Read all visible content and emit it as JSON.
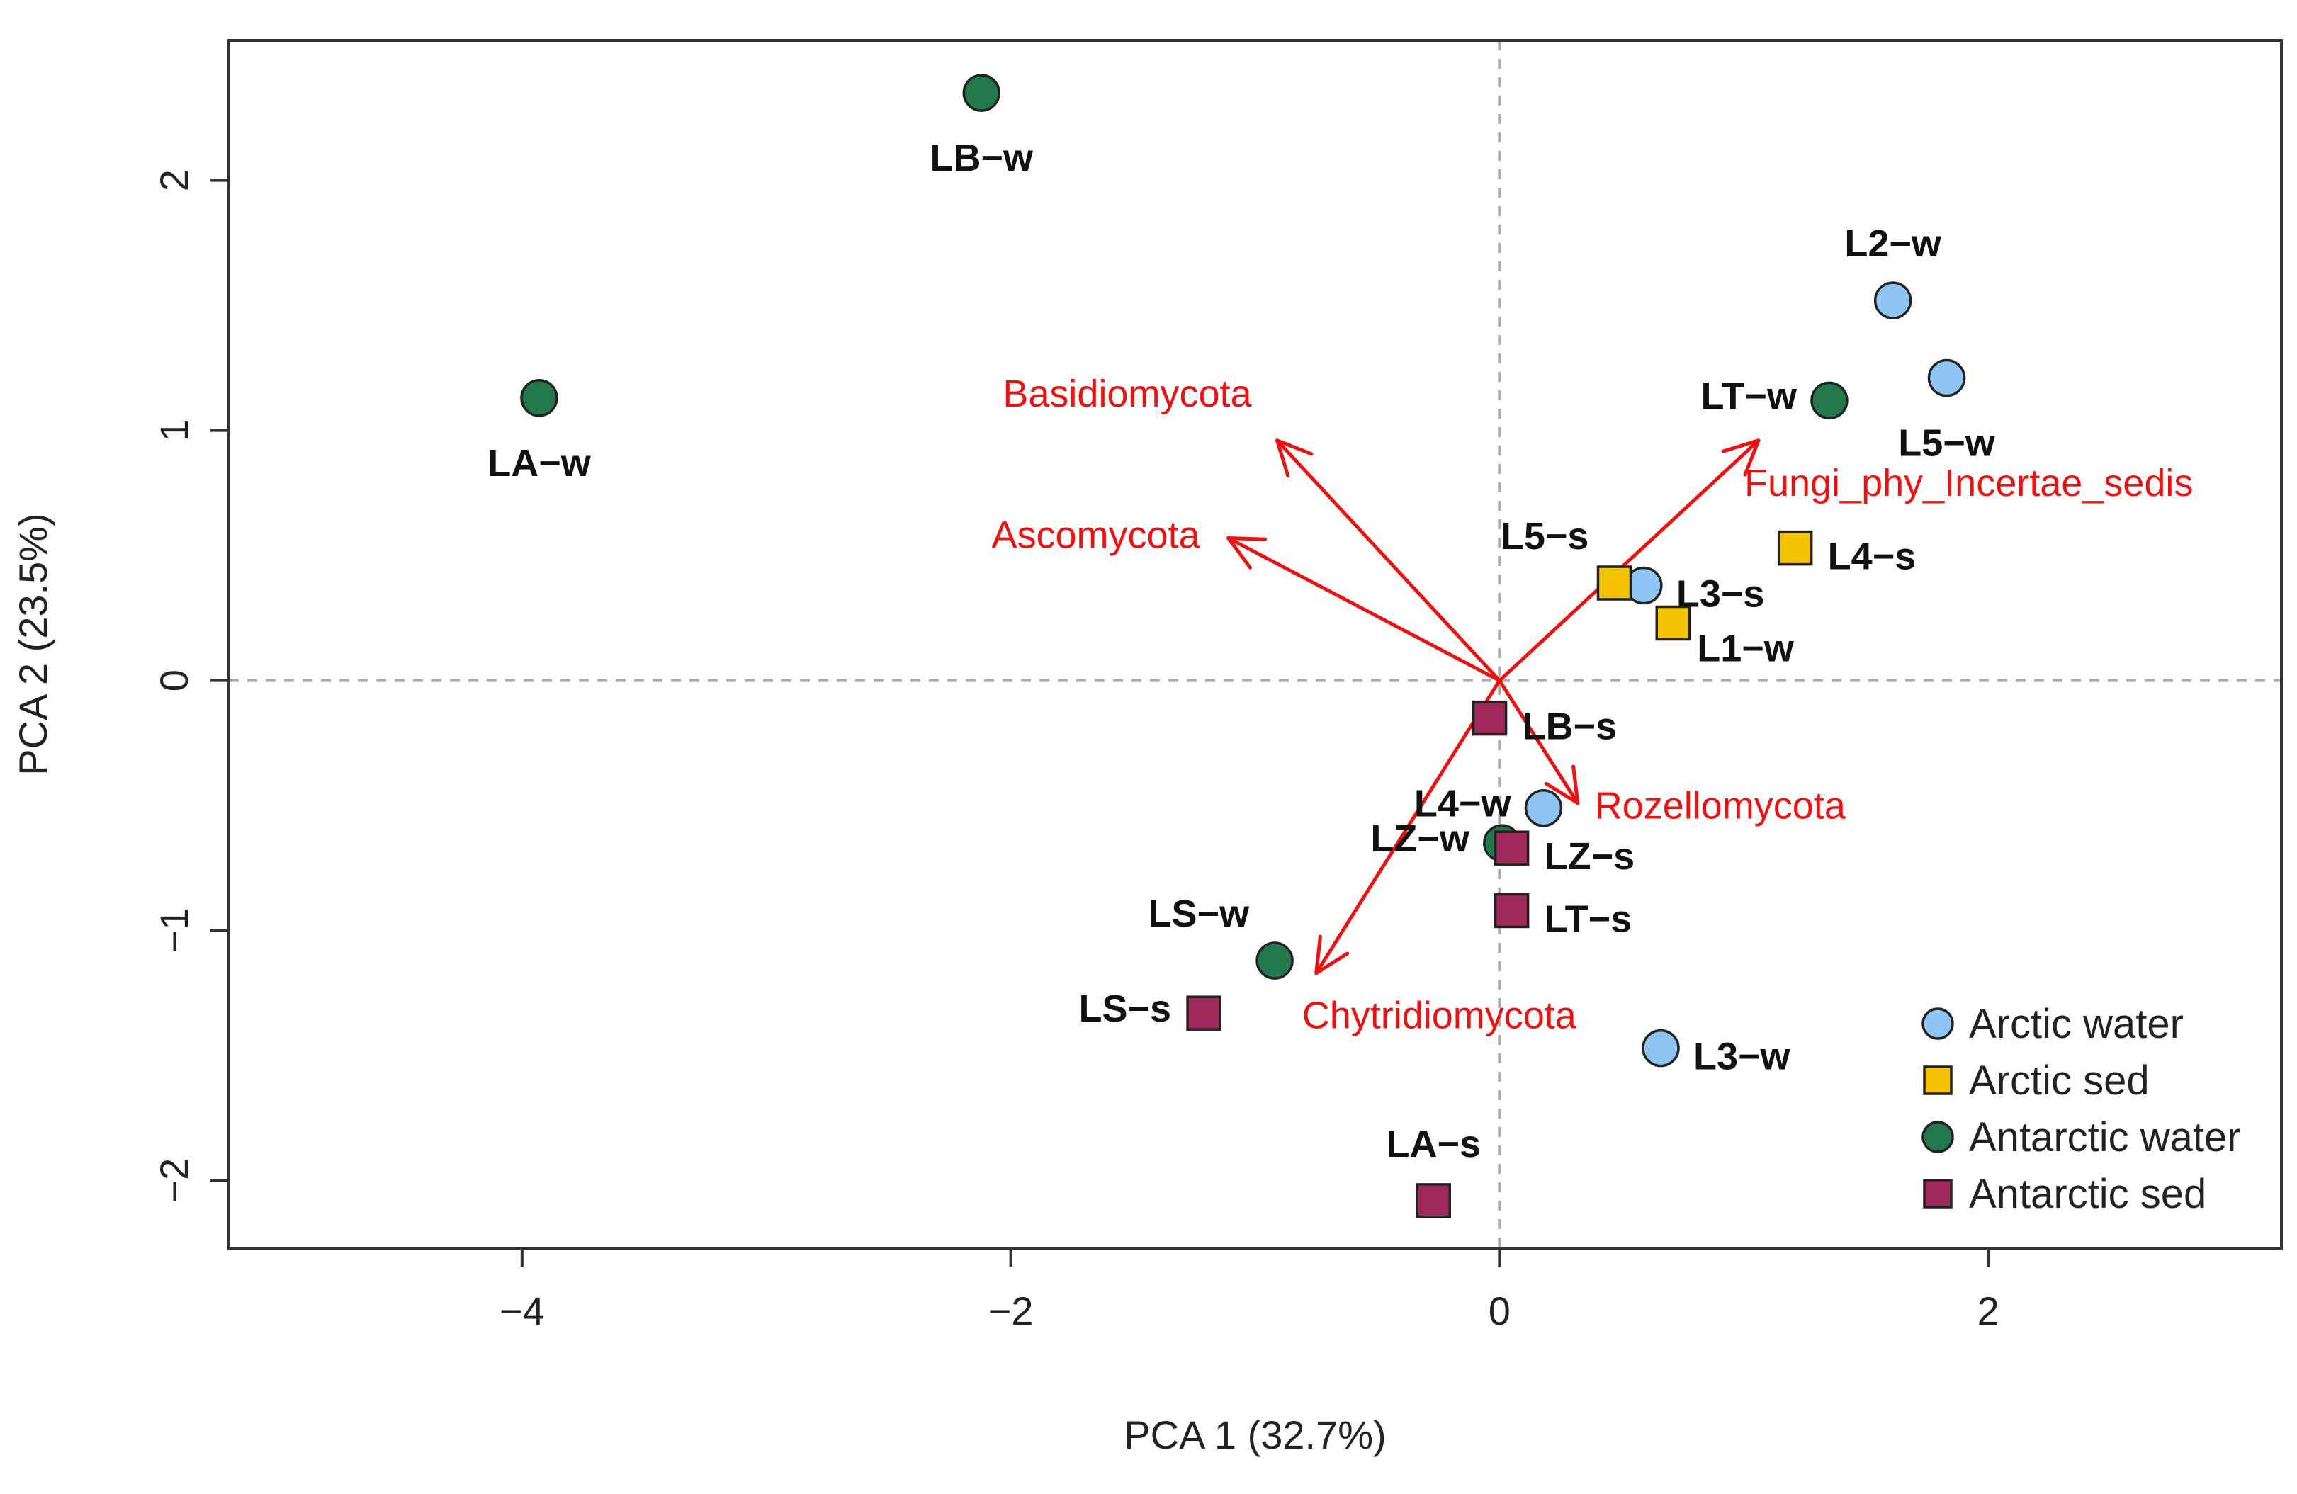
{
  "chart_data": {
    "type": "scatter",
    "subtype": "pca-biplot",
    "xlabel": "PCA 1 (32.7%)",
    "ylabel": "PCA 2 (23.5%)",
    "xlim": [
      -5.2,
      3.2
    ],
    "ylim": [
      -2.27,
      2.56
    ],
    "xticks": [
      -4,
      -2,
      0,
      2
    ],
    "xtick_labels": [
      "−4",
      "−2",
      "0",
      "2"
    ],
    "yticks": [
      -2,
      -1,
      0,
      1,
      2
    ],
    "ytick_labels": [
      "−2",
      "−1",
      "0",
      "1",
      "2"
    ],
    "reference_lines": {
      "x": 0,
      "y": 0,
      "style": "dashed"
    },
    "groups": [
      {
        "name": "Arctic water",
        "marker": "circle",
        "color": "#8EC5F2"
      },
      {
        "name": "Arctic sed",
        "marker": "square",
        "color": "#F5C400"
      },
      {
        "name": "Antarctic water",
        "marker": "circle",
        "color": "#22784A"
      },
      {
        "name": "Antarctic sed",
        "marker": "square",
        "color": "#A0285A"
      }
    ],
    "points": [
      {
        "label": "LB−w",
        "group": 2,
        "x": -2.12,
        "y": 2.35,
        "label_pos": "below"
      },
      {
        "label": "LA−w",
        "group": 2,
        "x": -3.93,
        "y": 1.13,
        "label_pos": "below"
      },
      {
        "label": "LT−w",
        "group": 2,
        "x": 1.35,
        "y": 1.12,
        "label_pos": "left"
      },
      {
        "label": "LS−w",
        "group": 2,
        "x": -0.92,
        "y": -1.12,
        "label_pos": "above-left"
      },
      {
        "label": "LZ−w",
        "group": 2,
        "x": 0.01,
        "y": -0.65,
        "label_pos": "left"
      },
      {
        "label": "L2−w",
        "group": 0,
        "x": 1.61,
        "y": 1.52,
        "label_pos": "above"
      },
      {
        "label": "L5−w",
        "group": 0,
        "x": 1.83,
        "y": 1.21,
        "label_pos": "below"
      },
      {
        "label": "L3−s",
        "group": 0,
        "x": 0.59,
        "y": 0.38,
        "label_pos": "right"
      },
      {
        "label": "L4−w",
        "group": 0,
        "x": 0.18,
        "y": -0.51,
        "label_pos": "left"
      },
      {
        "label": "L3−w",
        "group": 0,
        "x": 0.66,
        "y": -1.47,
        "label_pos": "right"
      },
      {
        "label": "L5−s",
        "group": 1,
        "x": 0.47,
        "y": 0.39,
        "label_pos": "above-left"
      },
      {
        "label": "L4−s",
        "group": 1,
        "x": 1.21,
        "y": 0.53,
        "label_pos": "right"
      },
      {
        "label": "L1−w",
        "group": 1,
        "x": 0.71,
        "y": 0.23,
        "label_pos": "below-right"
      },
      {
        "label": "LB−s",
        "group": 3,
        "x": -0.04,
        "y": -0.15,
        "label_pos": "right"
      },
      {
        "label": "LZ−s",
        "group": 3,
        "x": 0.05,
        "y": -0.67,
        "label_pos": "right"
      },
      {
        "label": "LT−s",
        "group": 3,
        "x": 0.05,
        "y": -0.92,
        "label_pos": "right"
      },
      {
        "label": "LS−s",
        "group": 3,
        "x": -1.21,
        "y": -1.33,
        "label_pos": "left"
      },
      {
        "label": "LA−s",
        "group": 3,
        "x": -0.27,
        "y": -2.08,
        "label_pos": "above"
      }
    ],
    "vectors": [
      {
        "label": "Basidiomycota",
        "x": -0.91,
        "y": 0.96,
        "label_pos": "above-left"
      },
      {
        "label": "Ascomycota",
        "x": -1.11,
        "y": 0.57,
        "label_pos": "left"
      },
      {
        "label": "Fungi_phy_Incertae_sedis",
        "x": 1.06,
        "y": 0.96,
        "label_pos": "below-right"
      },
      {
        "label": "Rozellomycota",
        "x": 0.32,
        "y": -0.49,
        "label_pos": "right"
      },
      {
        "label": "Chytridiomycota",
        "x": -0.75,
        "y": -1.17,
        "label_pos": "below-right"
      }
    ],
    "vector_color": "#ee1111",
    "legend_position": "bottom-right"
  }
}
